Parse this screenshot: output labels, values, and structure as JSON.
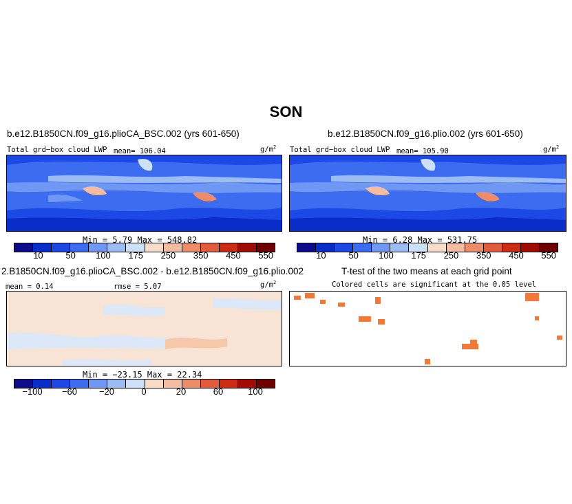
{
  "season": "SON",
  "colors": {
    "cloud_scale": [
      "#0c0c8c",
      "#0a2cc8",
      "#1c48e6",
      "#3c6cf0",
      "#6e98f4",
      "#9cbcf4",
      "#cce0f8",
      "#f8dcc8",
      "#f4bca0",
      "#ec8c68",
      "#e05c3c",
      "#cc2c14",
      "#a00c04",
      "#6e0000"
    ],
    "diff_scale": [
      "#0c0c8c",
      "#0a2cc8",
      "#1c48e6",
      "#3c6cf0",
      "#6e98f4",
      "#9cbcf4",
      "#cce0f8",
      "#f8dcc8",
      "#f4bca0",
      "#ec8c68",
      "#e05c3c",
      "#cc2c14",
      "#a00c04",
      "#6e0000"
    ],
    "significant": "#f07838"
  },
  "panels": [
    {
      "title": "b.e12.B1850CN.f09_g16.plioCA_BSC.002 (yrs 601-650)",
      "variable": "Total grd−box cloud LWP",
      "mean_text": "mean= 106.04",
      "units": "g/m",
      "units_sup": "2",
      "minmax": "Min =    5.79  Max =  548.82",
      "colorbar_ticks": [
        "10",
        "50",
        "100",
        "175",
        "250",
        "350",
        "450",
        "550"
      ]
    },
    {
      "title": "b.e12.B1850CN.f09_g16.plio.002 (yrs 601-650)",
      "variable": "Total grd−box cloud LWP",
      "mean_text": "mean= 105.90",
      "units": "g/m",
      "units_sup": "2",
      "minmax": "Min =    6.28  Max =  531.75",
      "colorbar_ticks": [
        "10",
        "50",
        "100",
        "175",
        "250",
        "350",
        "450",
        "550"
      ]
    },
    {
      "title": "2.B1850CN.f09_g16.plioCA_BSC.002 - b.e12.B1850CN.f09_g16.plio.002",
      "mean_text": "mean =   0.14",
      "rmse_text": "rmse =    5.07",
      "units": "g/m",
      "units_sup": "2",
      "minmax": "Min = −23.15  Max =  22.34",
      "colorbar_ticks": [
        "−100",
        "−60",
        "−20",
        "0",
        "20",
        "60",
        "100"
      ]
    },
    {
      "title": "T-test of the two means at each grid point",
      "subtitle": "Colored cells are significant at the 0.05 level"
    }
  ]
}
